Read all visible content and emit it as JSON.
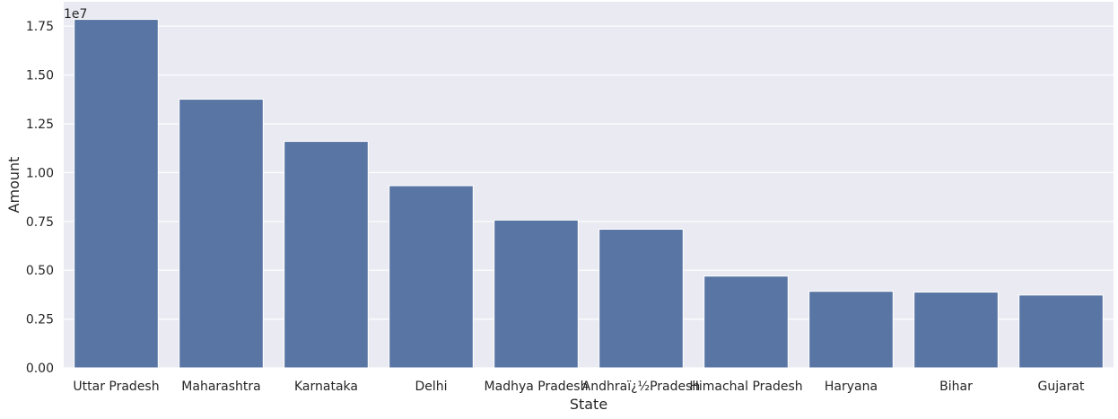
{
  "chart_data": {
    "type": "bar",
    "title": "",
    "xlabel": "State",
    "ylabel": "Amount",
    "y_offset_label": "1e7",
    "categories": [
      "Uttar Pradesh",
      "Maharashtra",
      "Karnataka",
      "Delhi",
      "Madhya Pradesh",
      "Andhraï¿½Pradesh",
      "Himachal Pradesh",
      "Haryana",
      "Bihar",
      "Gujarat"
    ],
    "values": [
      17850000,
      13760000,
      11600000,
      9330000,
      7570000,
      7100000,
      4700000,
      3920000,
      3880000,
      3730000
    ],
    "ylim": [
      0,
      18750000
    ],
    "yticks": [
      0,
      2500000,
      5000000,
      7500000,
      10000000,
      12500000,
      15000000,
      17500000
    ],
    "ytick_labels": [
      "0.00",
      "0.25",
      "0.50",
      "0.75",
      "1.00",
      "1.25",
      "1.50",
      "1.75"
    ],
    "grid": true,
    "legend": "none",
    "colors": {
      "bar": "#5875a4",
      "plot_background": "#eaeaf2",
      "grid": "#ffffff",
      "text": "#262626"
    }
  }
}
